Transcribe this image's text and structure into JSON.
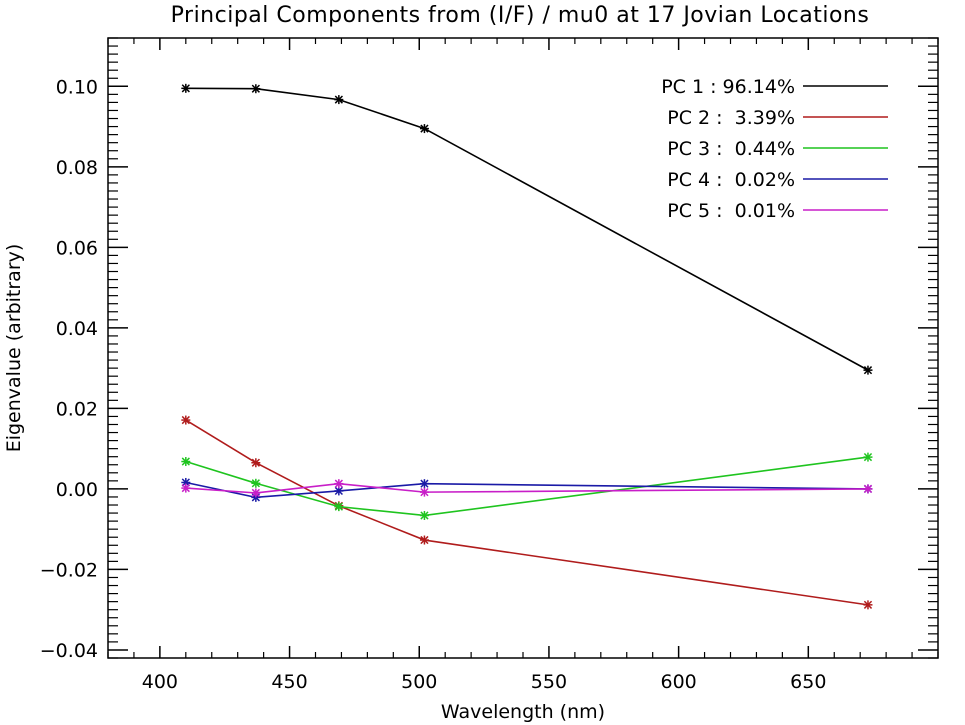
{
  "chart_data": {
    "type": "line",
    "title": "Principal Components from (I/F) / mu0 at 17 Jovian Locations",
    "xlabel": "Wavelength (nm)",
    "ylabel": "Eigenvalue (arbitrary)",
    "xlim": [
      380,
      700
    ],
    "ylim": [
      -0.042,
      0.112
    ],
    "xticks": [
      400,
      450,
      500,
      550,
      600,
      650
    ],
    "xtick_labels": [
      "400",
      "450",
      "500",
      "550",
      "600",
      "650"
    ],
    "yticks": [
      -0.04,
      -0.02,
      0.0,
      0.02,
      0.04,
      0.06,
      0.08,
      0.1
    ],
    "ytick_labels": [
      "−0.04",
      "−0.02",
      "0.00",
      "0.02",
      "0.04",
      "0.06",
      "0.08",
      "0.10"
    ],
    "grid": false,
    "legend_position": "top-right",
    "marker": "asterisk",
    "x": [
      410,
      437,
      469,
      502,
      673
    ],
    "series": [
      {
        "name": "PC 1 : 96.14%",
        "color": "#000000",
        "values": [
          0.0995,
          0.0994,
          0.0967,
          0.0895,
          0.0295
        ]
      },
      {
        "name": "PC 2 :  3.39%",
        "color": "#b01c1c",
        "values": [
          0.0171,
          0.0065,
          -0.0042,
          -0.0127,
          -0.0288
        ]
      },
      {
        "name": "PC 3 :  0.44%",
        "color": "#1fc41f",
        "values": [
          0.0068,
          0.0014,
          -0.0044,
          -0.0066,
          0.0079
        ]
      },
      {
        "name": "PC 4 :  0.02%",
        "color": "#1a1aa6",
        "values": [
          0.0016,
          -0.0021,
          -0.0005,
          0.0013,
          0.0
        ]
      },
      {
        "name": "PC 5 :  0.01%",
        "color": "#c81ec8",
        "values": [
          0.0002,
          -0.001,
          0.0013,
          -0.0008,
          0.0
        ]
      }
    ]
  }
}
